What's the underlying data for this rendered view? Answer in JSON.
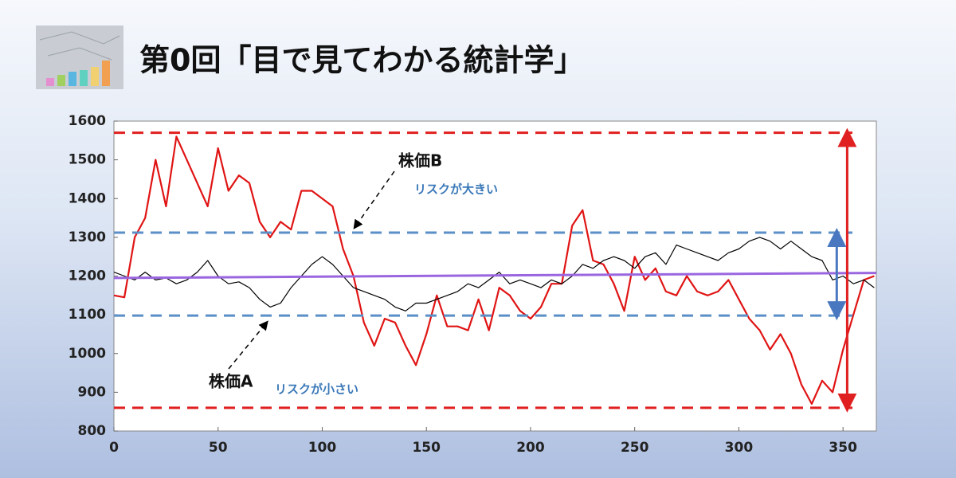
{
  "title": "第0回「目で見てわかる統計学」",
  "chart_data": {
    "type": "line",
    "x": [
      0,
      5,
      10,
      15,
      20,
      25,
      30,
      35,
      40,
      45,
      50,
      55,
      60,
      65,
      70,
      75,
      80,
      85,
      90,
      95,
      100,
      105,
      110,
      115,
      120,
      125,
      130,
      135,
      140,
      145,
      150,
      155,
      160,
      165,
      170,
      175,
      180,
      185,
      190,
      195,
      200,
      205,
      210,
      215,
      220,
      225,
      230,
      235,
      240,
      245,
      250,
      255,
      260,
      265,
      270,
      275,
      280,
      285,
      290,
      295,
      300,
      305,
      310,
      315,
      320,
      325,
      330,
      335,
      340,
      345,
      350,
      355,
      360,
      365
    ],
    "series": [
      {
        "name": "株価B",
        "color": "#e01414",
        "values": [
          1150,
          1145,
          1300,
          1350,
          1500,
          1380,
          1560,
          1500,
          1440,
          1380,
          1530,
          1420,
          1460,
          1440,
          1340,
          1300,
          1340,
          1320,
          1420,
          1420,
          1400,
          1380,
          1270,
          1200,
          1080,
          1020,
          1090,
          1080,
          1020,
          970,
          1050,
          1150,
          1070,
          1070,
          1060,
          1140,
          1060,
          1170,
          1150,
          1110,
          1090,
          1120,
          1180,
          1180,
          1330,
          1370,
          1240,
          1230,
          1180,
          1110,
          1250,
          1190,
          1220,
          1160,
          1150,
          1200,
          1160,
          1150,
          1160,
          1190,
          1140,
          1090,
          1060,
          1010,
          1050,
          1000,
          920,
          870,
          930,
          900,
          1010,
          1100,
          1190,
          1200
        ]
      },
      {
        "name": "株価A",
        "color": "#000000",
        "values": [
          1210,
          1200,
          1190,
          1210,
          1190,
          1195,
          1180,
          1190,
          1210,
          1240,
          1200,
          1180,
          1185,
          1170,
          1140,
          1120,
          1130,
          1170,
          1200,
          1230,
          1250,
          1230,
          1200,
          1170,
          1160,
          1150,
          1140,
          1120,
          1110,
          1130,
          1130,
          1140,
          1150,
          1160,
          1180,
          1170,
          1190,
          1210,
          1180,
          1190,
          1180,
          1170,
          1190,
          1180,
          1200,
          1230,
          1220,
          1240,
          1250,
          1240,
          1220,
          1250,
          1260,
          1230,
          1280,
          1270,
          1260,
          1250,
          1240,
          1260,
          1270,
          1290,
          1300,
          1290,
          1270,
          1290,
          1270,
          1250,
          1240,
          1190,
          1200,
          1180,
          1190,
          1170
        ]
      }
    ],
    "xlim": [
      0,
      366
    ],
    "ylim": [
      800,
      1600
    ],
    "xticks": [
      0,
      50,
      100,
      150,
      200,
      250,
      300,
      350
    ],
    "yticks": [
      800,
      900,
      1000,
      1100,
      1200,
      1300,
      1400,
      1500,
      1600
    ],
    "reference_lines": [
      {
        "value": 1570,
        "color": "#e02020"
      },
      {
        "value": 860,
        "color": "#e02020"
      },
      {
        "value": 1312,
        "color": "#5b8fc7"
      },
      {
        "value": 1098,
        "color": "#5b8fc7"
      }
    ],
    "trend": {
      "x": [
        0,
        366
      ],
      "values": [
        1195,
        1208
      ],
      "color": "#9a66e0"
    },
    "ranges": [
      {
        "x": 352,
        "values": [
          1570,
          860
        ],
        "color": "#e02020"
      },
      {
        "x": 347,
        "values": [
          1312,
          1098
        ],
        "color": "#4a78c0"
      }
    ],
    "annotations": [
      "リスクが大きい",
      "リスクが小さい"
    ]
  }
}
